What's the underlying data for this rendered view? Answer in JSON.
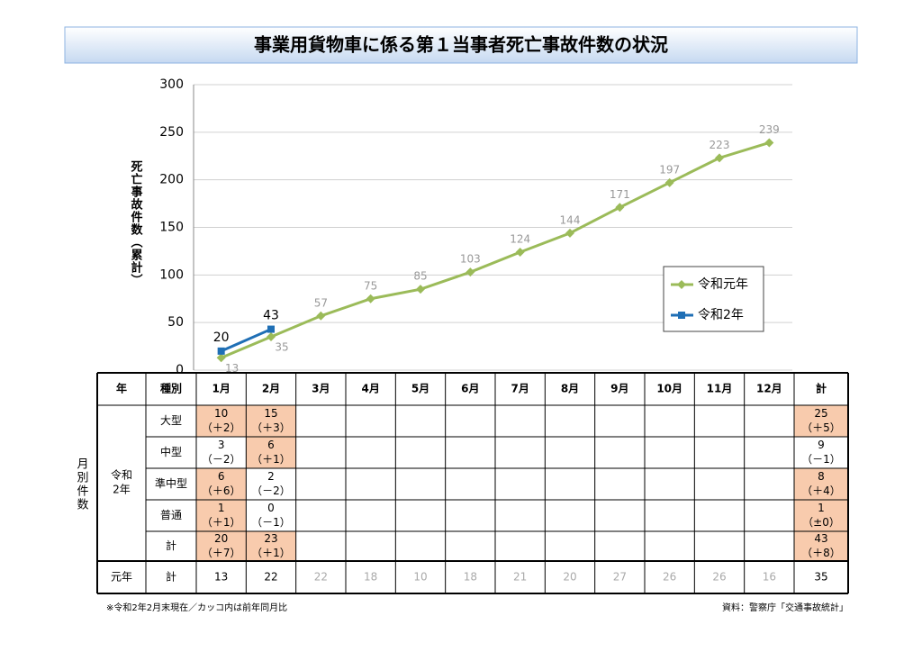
{
  "title": "事業用貨物車に係る第１当事者死亡事故件数の状況",
  "chart_data": {
    "type": "line",
    "y_label": "死亡事故件数（累計）",
    "categories": [
      null,
      null,
      null,
      null,
      null,
      null,
      null,
      null,
      null,
      null,
      null,
      null
    ],
    "ylim": [
      0,
      300
    ],
    "yticks": [
      0,
      50,
      100,
      150,
      200,
      250,
      300
    ],
    "grid": true,
    "legend": "right",
    "series": [
      {
        "name": "令和元年",
        "color": "#9bbb59",
        "values": [
          13,
          35,
          57,
          75,
          85,
          103,
          124,
          144,
          171,
          197,
          223,
          239
        ]
      },
      {
        "name": "令和2年",
        "color": "#1f6fb5",
        "values": [
          20,
          43,
          null,
          null,
          null,
          null,
          null,
          null,
          null,
          null,
          null,
          null
        ]
      }
    ]
  },
  "table": {
    "side_label": "月別件数",
    "header": [
      "年",
      "種別",
      "1月",
      "2月",
      "3月",
      "4月",
      "5月",
      "6月",
      "7月",
      "8月",
      "9月",
      "10月",
      "11月",
      "12月",
      "計"
    ],
    "group_label": [
      "令和",
      "2年"
    ],
    "rows": [
      {
        "label": "大型",
        "cells": [
          [
            10,
            "（＋2）"
          ],
          [
            15,
            "（＋3）"
          ]
        ],
        "total": [
          25,
          "（＋5）"
        ],
        "highlight": [
          true,
          true,
          true
        ]
      },
      {
        "label": "中型",
        "cells": [
          [
            3,
            "（－2）"
          ],
          [
            6,
            "（＋1）"
          ]
        ],
        "total": [
          9,
          "（－1）"
        ],
        "highlight": [
          false,
          true,
          false
        ]
      },
      {
        "label": "準中型",
        "cells": [
          [
            6,
            "（＋6）"
          ],
          [
            2,
            "（－2）"
          ]
        ],
        "total": [
          8,
          "（＋4）"
        ],
        "highlight": [
          true,
          false,
          true
        ]
      },
      {
        "label": "普通",
        "cells": [
          [
            1,
            "（＋1）"
          ],
          [
            0,
            "（－1）"
          ]
        ],
        "total": [
          1,
          "（±0）"
        ],
        "highlight": [
          true,
          false,
          true
        ]
      },
      {
        "label": "計",
        "cells": [
          [
            20,
            "（＋7）"
          ],
          [
            23,
            "（＋1）"
          ]
        ],
        "total": [
          43,
          "（＋8）"
        ],
        "highlight": [
          true,
          true,
          true
        ]
      }
    ],
    "prev_row": {
      "year": "元年",
      "label": "計",
      "values": [
        13,
        22,
        22,
        18,
        10,
        18,
        21,
        20,
        27,
        26,
        26,
        16
      ],
      "total": 35
    }
  },
  "footnote": "※令和2年2月末現在／カッコ内は前年同月比",
  "source": "資料：警察庁「交通事故統計」"
}
